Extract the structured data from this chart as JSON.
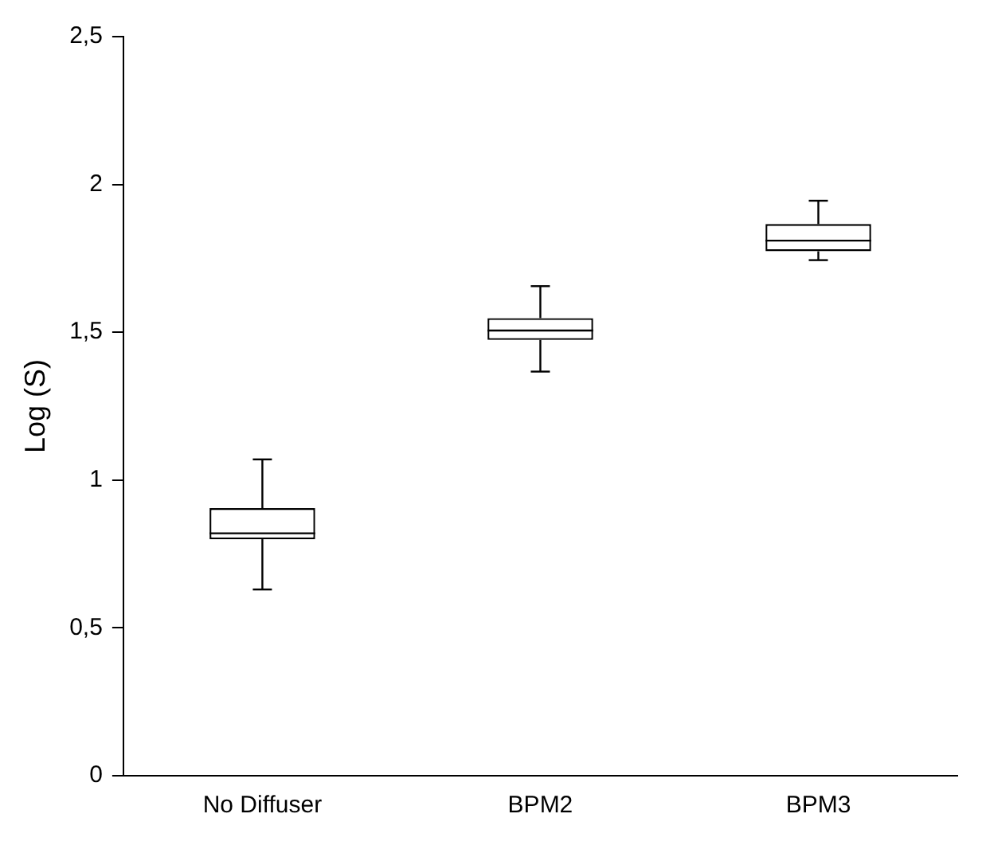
{
  "chart_data": {
    "type": "box",
    "ylabel": "Log (S)",
    "categories": [
      "No Diffuser",
      "BPM2",
      "BPM3"
    ],
    "boxes": [
      {
        "low": 0.63,
        "q1": 0.8,
        "median": 0.82,
        "q3": 0.905,
        "high": 1.07
      },
      {
        "low": 1.367,
        "q1": 1.474,
        "median": 1.506,
        "q3": 1.548,
        "high": 1.656
      },
      {
        "low": 1.744,
        "q1": 1.774,
        "median": 1.81,
        "q3": 1.866,
        "high": 1.945
      }
    ],
    "ylim": [
      0,
      2.5
    ],
    "yticks": [
      0,
      {
        "value": 0.5,
        "label": "0,5"
      },
      1,
      {
        "value": 1.5,
        "label": "1,5"
      },
      2,
      {
        "value": 2.5,
        "label": "2,5"
      }
    ],
    "grid": false,
    "legend": false
  }
}
